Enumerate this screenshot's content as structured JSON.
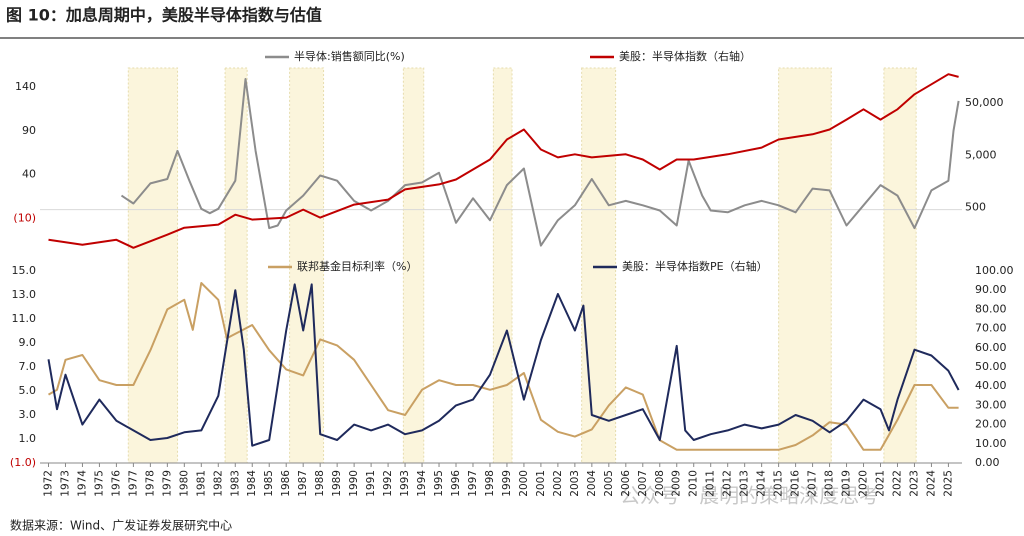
{
  "title": "图 10：加息周期中，美股半导体指数与估值",
  "source": "数据来源：Wind、广发证券发展研究中心",
  "watermark": "公众号 · 晨明的策略深度思考",
  "xlim": [
    1971.5,
    2025.8
  ],
  "xticks": [
    1972,
    1973,
    1974,
    1975,
    1976,
    1977,
    1978,
    1979,
    1980,
    1981,
    1982,
    1983,
    1984,
    1985,
    1986,
    1987,
    1988,
    1989,
    1990,
    1991,
    1992,
    1993,
    1994,
    1995,
    1996,
    1997,
    1998,
    1999,
    2000,
    2001,
    2002,
    2003,
    2004,
    2005,
    2006,
    2007,
    2008,
    2009,
    2010,
    2011,
    2012,
    2013,
    2014,
    2015,
    2016,
    2017,
    2018,
    2019,
    2020,
    2021,
    2022,
    2023,
    2024,
    2025
  ],
  "shaded_periods": [
    [
      1976.7,
      1979.6
    ],
    [
      1982.4,
      1983.7
    ],
    [
      1986.2,
      1988.2
    ],
    [
      1992.9,
      1994.1
    ],
    [
      1998.2,
      1999.3
    ],
    [
      2003.4,
      2005.4
    ],
    [
      2015.0,
      2018.1
    ],
    [
      2021.2,
      2023.1
    ]
  ],
  "shade_color": "#fbf5dc",
  "chart_data": [
    {
      "type": "line",
      "ylim": [
        -46,
        165
      ],
      "yticks": [
        140,
        90,
        40,
        {
          "value": -10,
          "label": "(10)"
        }
      ],
      "y2lim": [
        77,
        270000
      ],
      "y2log": true,
      "y2ticks": [
        {
          "value": 50000,
          "label": "50,000"
        },
        {
          "value": 5000,
          "label": "5,000"
        },
        500
      ],
      "negative_tick_color": "#c00000",
      "series": [
        {
          "name": "半导体:销售额同比(%)",
          "color": "#8c8c8c",
          "x": [
            1976.3,
            1977,
            1978,
            1979,
            1979.6,
            1980.3,
            1981,
            1981.5,
            1982,
            1983,
            1983.6,
            1984.2,
            1985,
            1985.5,
            1986,
            1987,
            1988,
            1989,
            1990,
            1991,
            1992,
            1993,
            1994,
            1995,
            1996,
            1997,
            1998,
            1999,
            2000,
            2001,
            2002,
            2003,
            2004,
            2005,
            2006,
            2007,
            2008,
            2009,
            2009.7,
            2010.5,
            2011,
            2012,
            2013,
            2014,
            2015,
            2016,
            2017,
            2018,
            2019,
            2020,
            2021,
            2022,
            2023,
            2024,
            2025,
            2025.3,
            2025.6
          ],
          "values": [
            16,
            7,
            30,
            35,
            67,
            33,
            1,
            -4,
            1,
            33,
            149,
            67,
            -21,
            -18,
            -1,
            16,
            39,
            33,
            10,
            -1,
            10,
            28,
            31,
            42,
            -15,
            13,
            -12,
            28,
            47,
            -41,
            -12,
            5,
            35,
            5,
            10,
            5,
            -1,
            -18,
            56,
            16,
            -1,
            -3,
            5,
            10,
            5,
            -3,
            24,
            22,
            -18,
            5,
            28,
            16,
            -21,
            22,
            33,
            90,
            124
          ]
        },
        {
          "name": "美股：半导体指数（右轴）",
          "color": "#c00000",
          "axis": "y2",
          "x": [
            1972,
            1974,
            1976,
            1977,
            1979,
            1980,
            1982,
            1983,
            1984,
            1986,
            1987,
            1988,
            1990,
            1992,
            1993,
            1995,
            1996,
            1997,
            1998,
            1999,
            2000,
            2001,
            2002,
            2003,
            2004,
            2006,
            2007,
            2008,
            2009,
            2010,
            2012,
            2014,
            2015,
            2017,
            2018,
            2019,
            2020,
            2021,
            2022,
            2023,
            2024,
            2025,
            2025.6
          ],
          "values": [
            121,
            97,
            121,
            85,
            151,
            206,
            236,
            366,
            294,
            321,
            458,
            321,
            571,
            712,
            1117,
            1389,
            1728,
            2685,
            4169,
            10100,
            15700,
            6500,
            4580,
            5240,
            4580,
            5240,
            4169,
            2685,
            4169,
            4169,
            5240,
            7060,
            10100,
            12700,
            15700,
            24300,
            38200,
            24300,
            38200,
            74000,
            115000,
            180000,
            160000
          ]
        }
      ]
    },
    {
      "type": "line",
      "ylim": [
        -1,
        15
      ],
      "yticks": [
        {
          "value": 15,
          "label": "15.0"
        },
        {
          "value": 13,
          "label": "13.0"
        },
        {
          "value": 11,
          "label": "11.0"
        },
        {
          "value": 9,
          "label": "9.0"
        },
        {
          "value": 7,
          "label": "7.0"
        },
        {
          "value": 5,
          "label": "5.0"
        },
        {
          "value": 3,
          "label": "3.0"
        },
        {
          "value": 1,
          "label": "1.0"
        },
        {
          "value": -1,
          "label": "(1.0)"
        }
      ],
      "y2lim": [
        0,
        100
      ],
      "y2ticks": [
        {
          "value": 100,
          "label": "100.00"
        },
        {
          "value": 90,
          "label": "90.00"
        },
        {
          "value": 80,
          "label": "80.00"
        },
        {
          "value": 70,
          "label": "70.00"
        },
        {
          "value": 60,
          "label": "60.00"
        },
        {
          "value": 50,
          "label": "50.00"
        },
        {
          "value": 40,
          "label": "40.00"
        },
        {
          "value": 30,
          "label": "30.00"
        },
        {
          "value": 20,
          "label": "20.00"
        },
        {
          "value": 10,
          "label": "10.00"
        },
        {
          "value": 0,
          "label": "0.00"
        }
      ],
      "negative_tick_color": "#c00000",
      "series": [
        {
          "name": "联邦基金目标利率（%）",
          "color": "#c9a063",
          "x": [
            1972,
            1972.5,
            1973,
            1974,
            1975,
            1976,
            1977,
            1978,
            1979,
            1980,
            1980.5,
            1981,
            1982,
            1982.5,
            1984,
            1985,
            1986,
            1987,
            1988,
            1989,
            1990,
            1991,
            1992,
            1993,
            1994,
            1995,
            1996,
            1997,
            1998,
            1999,
            2000,
            2001,
            2002,
            2003,
            2004,
            2005,
            2006,
            2007,
            2008,
            2009,
            2010,
            2015,
            2016,
            2017,
            2018,
            2019,
            2020,
            2021,
            2022,
            2023,
            2024,
            2025,
            2025.6
          ],
          "values": [
            4.7,
            5.1,
            7.6,
            8,
            5.9,
            5.5,
            5.5,
            8.4,
            11.8,
            12.6,
            10.1,
            14,
            12.6,
            9.4,
            10.5,
            8.4,
            6.8,
            6.3,
            9.3,
            8.8,
            7.6,
            5.5,
            3.4,
            3,
            5.1,
            5.9,
            5.5,
            5.5,
            5.1,
            5.5,
            6.5,
            2.6,
            1.6,
            1.2,
            1.8,
            3.8,
            5.3,
            4.7,
            0.9,
            0.1,
            0.1,
            0.1,
            0.5,
            1.3,
            2.4,
            2.2,
            0.1,
            0.1,
            2.6,
            5.5,
            5.5,
            3.6,
            3.6
          ]
        },
        {
          "name": "美股：半导体指数PE（右轴）",
          "color": "#1f2a5c",
          "axis": "y2",
          "x": [
            1972,
            1972.5,
            1973,
            1974,
            1975,
            1976,
            1977,
            1978,
            1979,
            1980,
            1981,
            1982,
            1983,
            1983.5,
            1984,
            1985,
            1986,
            1986.5,
            1987,
            1987.5,
            1988,
            1989,
            1990,
            1991,
            1992,
            1993,
            1994,
            1995,
            1996,
            1997,
            1998,
            1999,
            2000,
            2001,
            2002,
            2003,
            2003.5,
            2004,
            2005,
            2006,
            2007,
            2008,
            2009,
            2009.5,
            2010,
            2011,
            2012,
            2013,
            2014,
            2015,
            2016,
            2017,
            2018,
            2019,
            2020,
            2021,
            2021.5,
            2022,
            2023,
            2024,
            2025,
            2025.6
          ],
          "values": [
            54,
            28,
            46,
            20,
            33,
            22,
            17,
            12,
            13,
            16,
            17,
            35,
            90,
            59,
            9,
            12,
            69,
            93,
            69,
            93,
            15,
            12,
            20,
            17,
            20,
            15,
            17,
            22,
            30,
            33,
            46,
            69,
            33,
            64,
            88,
            69,
            82,
            25,
            22,
            25,
            28,
            12,
            61,
            17,
            12,
            15,
            17,
            20,
            18,
            20,
            25,
            22,
            16,
            22,
            33,
            28,
            17,
            33,
            59,
            56,
            48,
            38
          ]
        }
      ]
    }
  ]
}
